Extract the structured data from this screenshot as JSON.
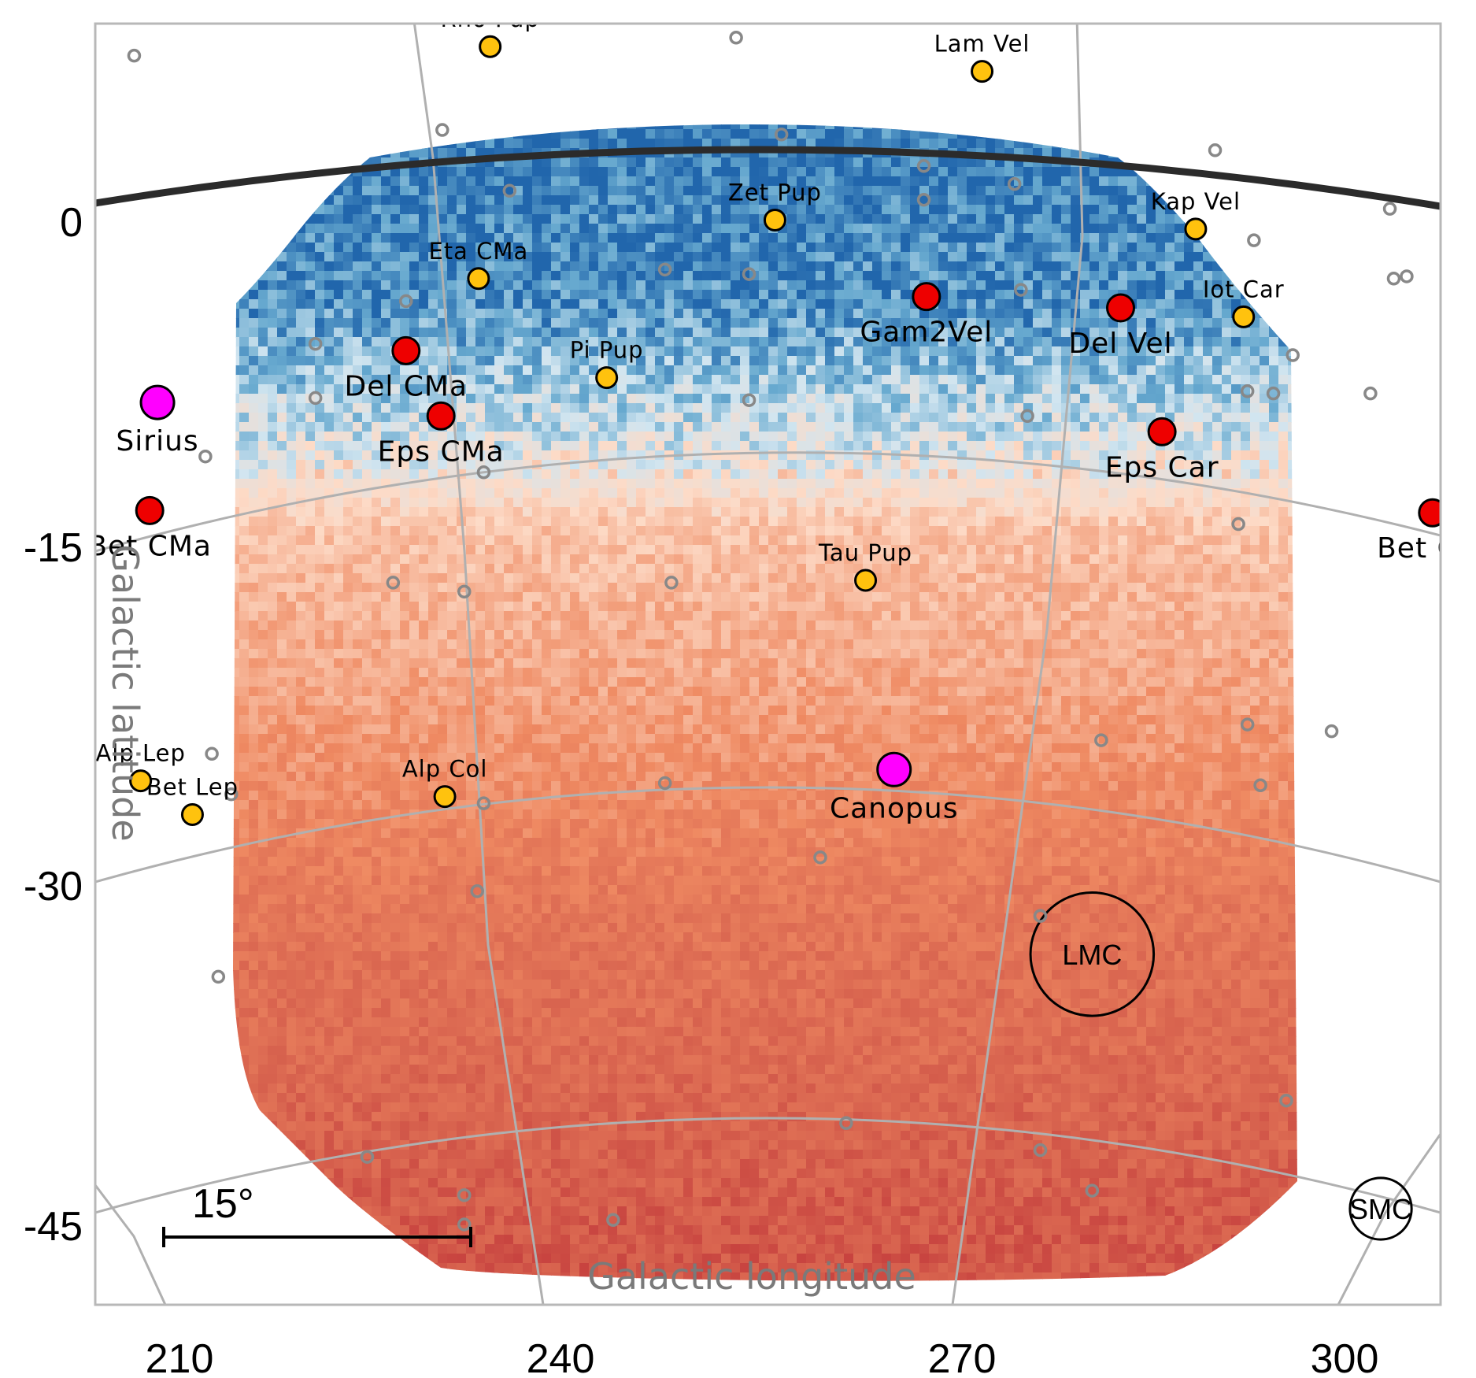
{
  "figure": {
    "x_axis_title": "Galactic longitude",
    "y_axis_title": "Galactic latitude",
    "x_ticks": [
      "210",
      "240",
      "270",
      "300"
    ],
    "y_ticks": [
      "0",
      "-15",
      "-30",
      "-45"
    ],
    "scale_bar_label": "15°"
  },
  "colors": {
    "high_dark": "#2166ac",
    "high_mid": "#67a9cf",
    "high_light": "#d1e5f0",
    "low_light": "#fddbc7",
    "low_mid": "#ef8a62",
    "low_dark": "#d6604d",
    "edge_dark": "#b2182b",
    "bright_star": "#ff00ff",
    "red_star": "#ee0000",
    "yellow_star": "#ffc20e",
    "faint_star_ring": "#888888",
    "grid": "#b0b0b0"
  },
  "stars": {
    "bright": [
      {
        "label": "Sirius",
        "lon": 208.3,
        "lat": -8.5
      },
      {
        "label": "Canopus",
        "lon": 265.2,
        "lat": -24.8
      }
    ],
    "red": [
      {
        "label": "Del CMa",
        "lon": 227.5,
        "lat": -6.2
      },
      {
        "label": "Eps CMa",
        "lon": 230.2,
        "lat": -9.1
      },
      {
        "label": "Gam2Vel",
        "lon": 267.7,
        "lat": -3.8
      },
      {
        "label": "Del Vel",
        "lon": 282.7,
        "lat": -4.3
      },
      {
        "label": "Eps Car",
        "lon": 285.9,
        "lat": -9.8
      },
      {
        "label": "Bet CMa",
        "lon": 207.7,
        "lat": -13.3
      },
      {
        "label": "Bet Car",
        "lon": 306.8,
        "lat": -13.4
      }
    ],
    "yellow": [
      {
        "label": "Rho Pup",
        "lon": 234.0,
        "lat": 7.3
      },
      {
        "label": "Lam Vel",
        "lon": 272.0,
        "lat": 6.2
      },
      {
        "label": "Zet Pup",
        "lon": 256.0,
        "lat": -0.4
      },
      {
        "label": "Kap Vel",
        "lon": 288.5,
        "lat": -0.8
      },
      {
        "label": "Eta CMa",
        "lon": 233.1,
        "lat": -3.0
      },
      {
        "label": "Iot Car",
        "lon": 292.2,
        "lat": -4.7
      },
      {
        "label": "Pi  Pup",
        "lon": 243.0,
        "lat": -7.4
      },
      {
        "label": "Tau Pup",
        "lon": 263.0,
        "lat": -16.4
      },
      {
        "label": "Alp Col",
        "lon": 230.5,
        "lat": -26.0
      },
      {
        "label": "Bet Lep",
        "lon": 211.0,
        "lat": -26.8
      },
      {
        "label": "Alp Lep",
        "lon": 207.0,
        "lat": -25.3
      }
    ],
    "faint": [
      {
        "lon": 206.5,
        "lat": 6.9
      },
      {
        "lon": 253.0,
        "lat": 7.7
      },
      {
        "lon": 230.3,
        "lat": 3.6
      },
      {
        "lon": 256.5,
        "lat": 3.4
      },
      {
        "lon": 267.5,
        "lat": 2.0
      },
      {
        "lon": 274.5,
        "lat": 1.2
      },
      {
        "lon": 290.0,
        "lat": 2.7
      },
      {
        "lon": 267.5,
        "lat": 0.5
      },
      {
        "lon": 235.5,
        "lat": 0.9
      },
      {
        "lon": 303.5,
        "lat": 0.1
      },
      {
        "lon": 293.0,
        "lat": -1.3
      },
      {
        "lon": 303.8,
        "lat": -3.0
      },
      {
        "lon": 304.8,
        "lat": -2.9
      },
      {
        "lon": 247.5,
        "lat": -2.6
      },
      {
        "lon": 254.0,
        "lat": -2.8
      },
      {
        "lon": 275.0,
        "lat": -3.5
      },
      {
        "lon": 227.5,
        "lat": -4.0
      },
      {
        "lon": 220.5,
        "lat": -5.9
      },
      {
        "lon": 296.0,
        "lat": -6.4
      },
      {
        "lon": 292.5,
        "lat": -8.0
      },
      {
        "lon": 294.5,
        "lat": -8.1
      },
      {
        "lon": 302.0,
        "lat": -8.1
      },
      {
        "lon": 220.5,
        "lat": -8.3
      },
      {
        "lon": 254.0,
        "lat": -8.4
      },
      {
        "lon": 275.5,
        "lat": -9.1
      },
      {
        "lon": 212.0,
        "lat": -10.9
      },
      {
        "lon": 233.5,
        "lat": -11.6
      },
      {
        "lon": 291.8,
        "lat": -13.9
      },
      {
        "lon": 226.5,
        "lat": -16.5
      },
      {
        "lon": 232.0,
        "lat": -16.9
      },
      {
        "lon": 248.0,
        "lat": -16.5
      },
      {
        "lon": 292.5,
        "lat": -22.8
      },
      {
        "lon": 299.0,
        "lat": -23.1
      },
      {
        "lon": 212.5,
        "lat": -24.1
      },
      {
        "lon": 281.2,
        "lat": -23.5
      },
      {
        "lon": 293.5,
        "lat": -25.5
      },
      {
        "lon": 214.0,
        "lat": -25.9
      },
      {
        "lon": 247.5,
        "lat": -25.4
      },
      {
        "lon": 233.5,
        "lat": -26.3
      },
      {
        "lon": 259.5,
        "lat": -28.7
      },
      {
        "lon": 233.0,
        "lat": -30.2
      },
      {
        "lon": 276.5,
        "lat": -31.3
      },
      {
        "lon": 213.0,
        "lat": -34.0
      },
      {
        "lon": 295.5,
        "lat": -39.5
      },
      {
        "lon": 261.5,
        "lat": -40.5
      },
      {
        "lon": 276.5,
        "lat": -41.7
      },
      {
        "lon": 224.5,
        "lat": -42.0
      },
      {
        "lon": 232.0,
        "lat": -43.7
      },
      {
        "lon": 280.5,
        "lat": -43.5
      },
      {
        "lon": 232.0,
        "lat": -45.0
      },
      {
        "lon": 243.5,
        "lat": -44.8
      }
    ]
  },
  "regions": [
    {
      "label": "LMC",
      "lon": 280.5,
      "lat": -33.0,
      "radius_deg": 3.4
    },
    {
      "label": "SMC",
      "lon": 302.8,
      "lat": -44.3,
      "radius_deg": 1.7
    }
  ],
  "heatmap": {
    "colormap": "RdBu",
    "latitude_gradient": [
      {
        "lat": 3,
        "value": 0.05
      },
      {
        "lat": -4,
        "value": 0.1
      },
      {
        "lat": -10,
        "value": 0.35
      },
      {
        "lat": -14,
        "value": 0.55
      },
      {
        "lat": -22,
        "value": 0.62
      },
      {
        "lat": -32,
        "value": 0.75
      },
      {
        "lat": -46,
        "value": 0.85
      }
    ]
  }
}
